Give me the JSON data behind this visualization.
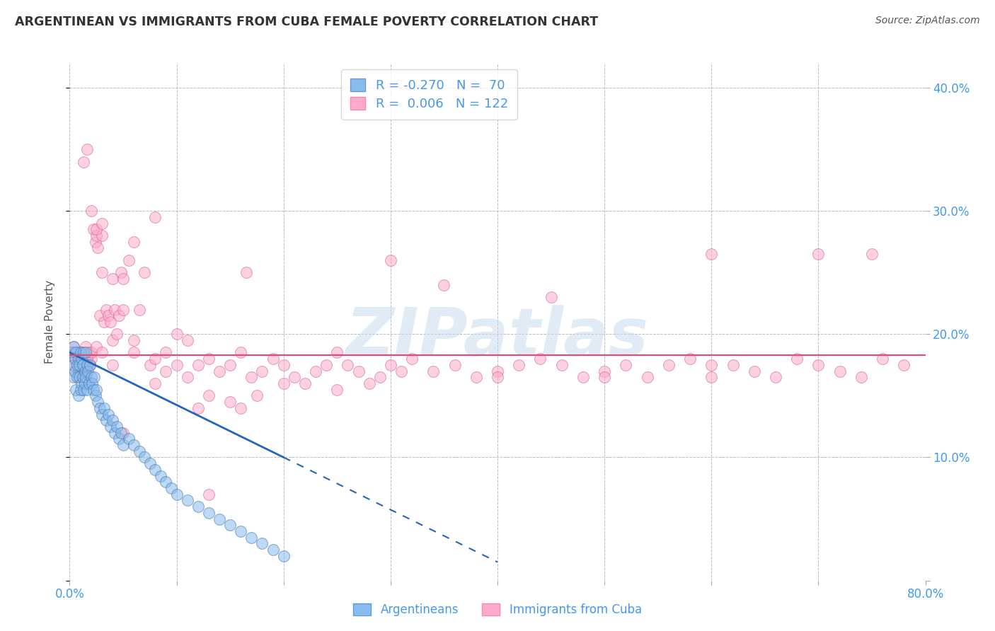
{
  "title": "ARGENTINEAN VS IMMIGRANTS FROM CUBA FEMALE POVERTY CORRELATION CHART",
  "source": "Source: ZipAtlas.com",
  "ylabel_label": "Female Poverty",
  "xlim": [
    0.0,
    0.8
  ],
  "ylim": [
    0.0,
    0.42
  ],
  "color_blue": "#88BBEE",
  "color_pink": "#FFAACC",
  "color_blue_line": "#2266BB",
  "color_pink_line": "#EE4477",
  "watermark": "ZIPatlas",
  "arg_x": [
    0.002,
    0.003,
    0.004,
    0.004,
    0.005,
    0.005,
    0.006,
    0.006,
    0.007,
    0.007,
    0.008,
    0.008,
    0.009,
    0.009,
    0.01,
    0.01,
    0.011,
    0.011,
    0.012,
    0.012,
    0.013,
    0.013,
    0.014,
    0.014,
    0.015,
    0.015,
    0.016,
    0.016,
    0.017,
    0.018,
    0.019,
    0.02,
    0.021,
    0.022,
    0.023,
    0.024,
    0.025,
    0.026,
    0.028,
    0.03,
    0.032,
    0.034,
    0.036,
    0.038,
    0.04,
    0.042,
    0.044,
    0.046,
    0.048,
    0.05,
    0.055,
    0.06,
    0.065,
    0.07,
    0.075,
    0.08,
    0.085,
    0.09,
    0.095,
    0.1,
    0.11,
    0.12,
    0.13,
    0.14,
    0.15,
    0.16,
    0.17,
    0.18,
    0.19,
    0.2
  ],
  "arg_y": [
    0.185,
    0.175,
    0.19,
    0.165,
    0.18,
    0.17,
    0.185,
    0.155,
    0.175,
    0.165,
    0.18,
    0.15,
    0.175,
    0.165,
    0.185,
    0.155,
    0.18,
    0.16,
    0.175,
    0.165,
    0.185,
    0.155,
    0.17,
    0.16,
    0.185,
    0.165,
    0.175,
    0.155,
    0.17,
    0.16,
    0.175,
    0.165,
    0.16,
    0.155,
    0.165,
    0.15,
    0.155,
    0.145,
    0.14,
    0.135,
    0.14,
    0.13,
    0.135,
    0.125,
    0.13,
    0.12,
    0.125,
    0.115,
    0.12,
    0.11,
    0.115,
    0.11,
    0.105,
    0.1,
    0.095,
    0.09,
    0.085,
    0.08,
    0.075,
    0.07,
    0.065,
    0.06,
    0.055,
    0.05,
    0.045,
    0.04,
    0.035,
    0.03,
    0.025,
    0.02
  ],
  "cuba_x": [
    0.002,
    0.003,
    0.004,
    0.005,
    0.006,
    0.007,
    0.008,
    0.009,
    0.01,
    0.011,
    0.012,
    0.013,
    0.014,
    0.015,
    0.016,
    0.017,
    0.018,
    0.019,
    0.02,
    0.022,
    0.024,
    0.025,
    0.026,
    0.028,
    0.03,
    0.032,
    0.034,
    0.036,
    0.038,
    0.04,
    0.042,
    0.044,
    0.046,
    0.048,
    0.05,
    0.055,
    0.06,
    0.065,
    0.07,
    0.08,
    0.09,
    0.1,
    0.11,
    0.12,
    0.13,
    0.14,
    0.15,
    0.16,
    0.17,
    0.18,
    0.19,
    0.2,
    0.21,
    0.22,
    0.23,
    0.24,
    0.25,
    0.26,
    0.27,
    0.28,
    0.29,
    0.3,
    0.31,
    0.32,
    0.34,
    0.36,
    0.38,
    0.4,
    0.42,
    0.44,
    0.46,
    0.48,
    0.5,
    0.52,
    0.54,
    0.56,
    0.58,
    0.6,
    0.62,
    0.64,
    0.66,
    0.68,
    0.7,
    0.72,
    0.74,
    0.76,
    0.78,
    0.013,
    0.016,
    0.02,
    0.025,
    0.03,
    0.04,
    0.05,
    0.06,
    0.075,
    0.09,
    0.11,
    0.13,
    0.15,
    0.175,
    0.2,
    0.25,
    0.3,
    0.4,
    0.5,
    0.6,
    0.7,
    0.03,
    0.05,
    0.08,
    0.12,
    0.16,
    0.35,
    0.45,
    0.6,
    0.75,
    0.01,
    0.013,
    0.016,
    0.02,
    0.025,
    0.03,
    0.04,
    0.06,
    0.08,
    0.1,
    0.13,
    0.165
  ],
  "cuba_y": [
    0.185,
    0.175,
    0.19,
    0.18,
    0.185,
    0.175,
    0.17,
    0.165,
    0.185,
    0.175,
    0.18,
    0.17,
    0.165,
    0.19,
    0.18,
    0.175,
    0.185,
    0.175,
    0.18,
    0.285,
    0.275,
    0.28,
    0.27,
    0.215,
    0.28,
    0.21,
    0.22,
    0.215,
    0.21,
    0.195,
    0.22,
    0.2,
    0.215,
    0.25,
    0.22,
    0.26,
    0.275,
    0.22,
    0.25,
    0.295,
    0.185,
    0.2,
    0.195,
    0.175,
    0.18,
    0.17,
    0.175,
    0.185,
    0.165,
    0.17,
    0.18,
    0.175,
    0.165,
    0.16,
    0.17,
    0.175,
    0.185,
    0.175,
    0.17,
    0.16,
    0.165,
    0.175,
    0.17,
    0.18,
    0.17,
    0.175,
    0.165,
    0.17,
    0.175,
    0.18,
    0.175,
    0.165,
    0.17,
    0.175,
    0.165,
    0.175,
    0.18,
    0.165,
    0.175,
    0.17,
    0.165,
    0.18,
    0.175,
    0.17,
    0.165,
    0.18,
    0.175,
    0.34,
    0.35,
    0.3,
    0.285,
    0.29,
    0.245,
    0.12,
    0.195,
    0.175,
    0.17,
    0.165,
    0.15,
    0.145,
    0.15,
    0.16,
    0.155,
    0.26,
    0.165,
    0.165,
    0.265,
    0.265,
    0.25,
    0.245,
    0.16,
    0.14,
    0.14,
    0.24,
    0.23,
    0.175,
    0.265,
    0.185,
    0.175,
    0.18,
    0.185,
    0.19,
    0.185,
    0.175,
    0.185,
    0.18,
    0.175,
    0.07,
    0.25
  ],
  "line_arg_x0": 0.0,
  "line_arg_y0": 0.185,
  "line_arg_x1": 0.2,
  "line_arg_y1": 0.1,
  "line_arg_dash_x1": 0.4,
  "line_arg_dash_y1": 0.015,
  "line_cuba_y": 0.183
}
